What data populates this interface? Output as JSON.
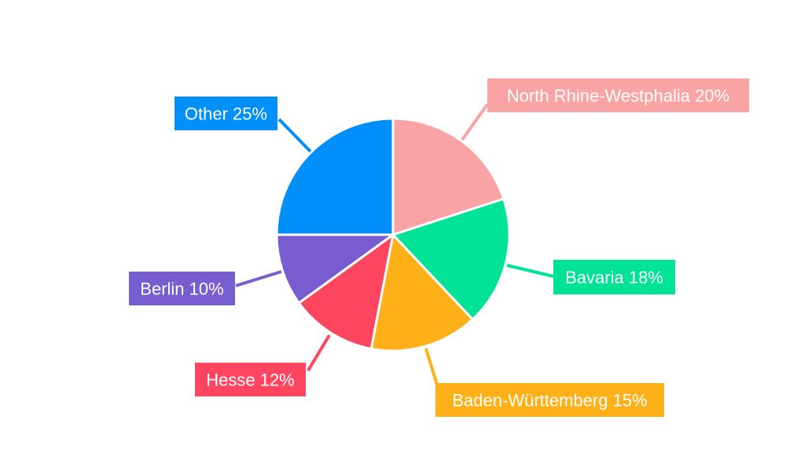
{
  "chart_data": {
    "type": "pie",
    "title": "",
    "start_angle": "12 o'clock, clockwise",
    "legend": "none",
    "slices": [
      {
        "label": "North Rhine-Westphalia",
        "value": 20,
        "text": "North Rhine-Westphalia 20%",
        "color": "#F9A3A4"
      },
      {
        "label": "Bavaria",
        "value": 18,
        "text": "Bavaria 18%",
        "color": "#00E396"
      },
      {
        "label": "Baden-Württemberg",
        "value": 15,
        "text": "Baden-Württemberg 15%",
        "color": "#FEB019"
      },
      {
        "label": "Hesse",
        "value": 12,
        "text": "Hesse 12%",
        "color": "#FF4560"
      },
      {
        "label": "Berlin",
        "value": 10,
        "text": "Berlin 10%",
        "color": "#775DD0"
      },
      {
        "label": "Other",
        "value": 25,
        "text": "Other 25%",
        "color": "#008FFB"
      }
    ]
  }
}
